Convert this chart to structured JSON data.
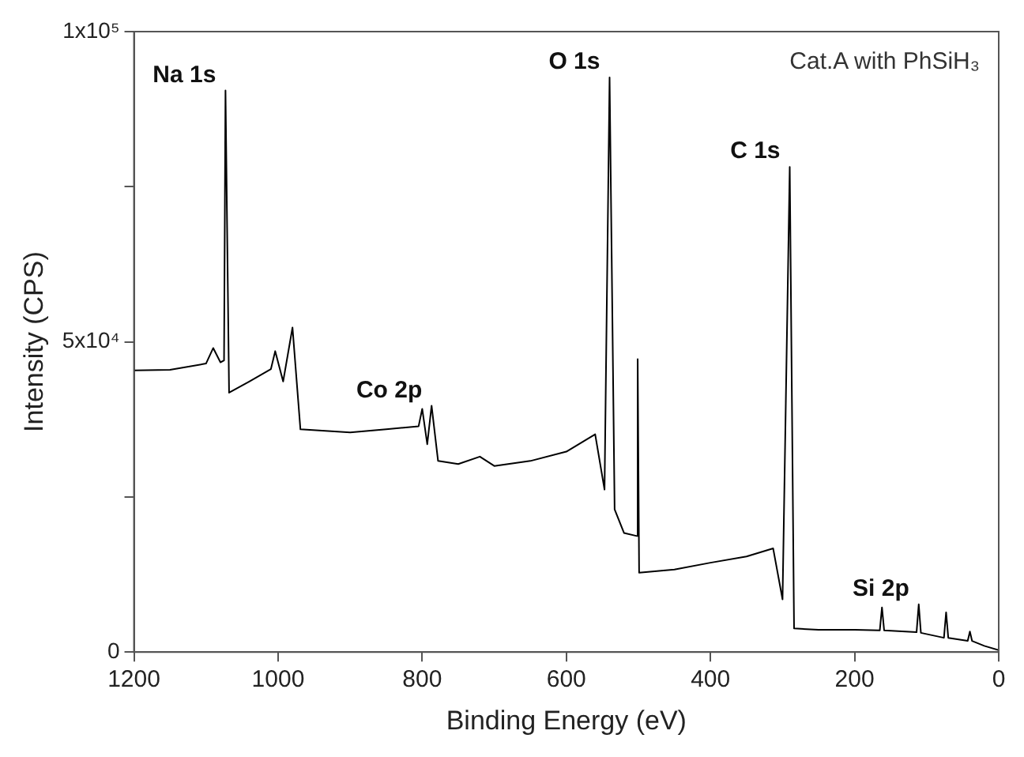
{
  "chart_data": {
    "type": "line",
    "xlabel": "Binding Energy (eV)",
    "ylabel": "Intensity (CPS)",
    "x": [
      1200,
      1150,
      1100,
      1090,
      1080,
      1075,
      1073,
      1068,
      1040,
      1010,
      1004,
      993,
      980,
      969,
      900,
      850,
      805,
      800,
      793,
      787,
      778,
      750,
      720,
      700,
      650,
      600,
      560,
      547,
      540,
      533,
      520,
      502,
      501,
      499,
      450,
      400,
      350,
      313,
      300,
      290,
      284,
      250,
      200,
      165,
      162,
      159,
      114,
      111,
      108,
      76,
      73,
      70,
      43,
      40,
      37,
      20,
      0
    ],
    "series": [
      {
        "color": "#000000",
        "values": [
          45400,
          45500,
          46500,
          49000,
          46700,
          47000,
          90500,
          41800,
          43600,
          45600,
          48500,
          43600,
          52300,
          35900,
          35400,
          35900,
          36400,
          39200,
          33500,
          39700,
          30800,
          30300,
          31500,
          30000,
          30800,
          32300,
          35100,
          26200,
          92600,
          23000,
          19200,
          18700,
          47200,
          12800,
          13300,
          14400,
          15400,
          16700,
          8500,
          78200,
          3800,
          3600,
          3600,
          3500,
          7200,
          3500,
          3200,
          7700,
          3100,
          2300,
          6400,
          2300,
          1800,
          3300,
          1800,
          1000,
          300
        ]
      }
    ],
    "xlim": [
      1200,
      0
    ],
    "xticks": [
      1200,
      1000,
      800,
      600,
      400,
      200,
      0
    ],
    "ylim": [
      0,
      100000
    ],
    "yticks": [
      0,
      {
        "value": 25000,
        "label": null
      },
      {
        "value": 50000,
        "label": "5x10⁴"
      },
      {
        "value": 75000,
        "label": null
      },
      {
        "value": 100000,
        "label": "1x10⁵"
      }
    ],
    "grid": false,
    "legend": false,
    "marker": "none",
    "line_style": "solid",
    "annotations": [
      "Cat.A with PhSiH₃",
      {
        "text": "Na 1s",
        "x": 1073,
        "y": 90500
      },
      {
        "text": "O 1s",
        "x": 540,
        "y": 92600
      },
      {
        "text": "C 1s",
        "x": 290,
        "y": 78200
      },
      {
        "text": "Co 2p",
        "x": 787,
        "y": 39700
      },
      {
        "text": "Si 2p",
        "x": 111,
        "y": 7700
      }
    ]
  }
}
